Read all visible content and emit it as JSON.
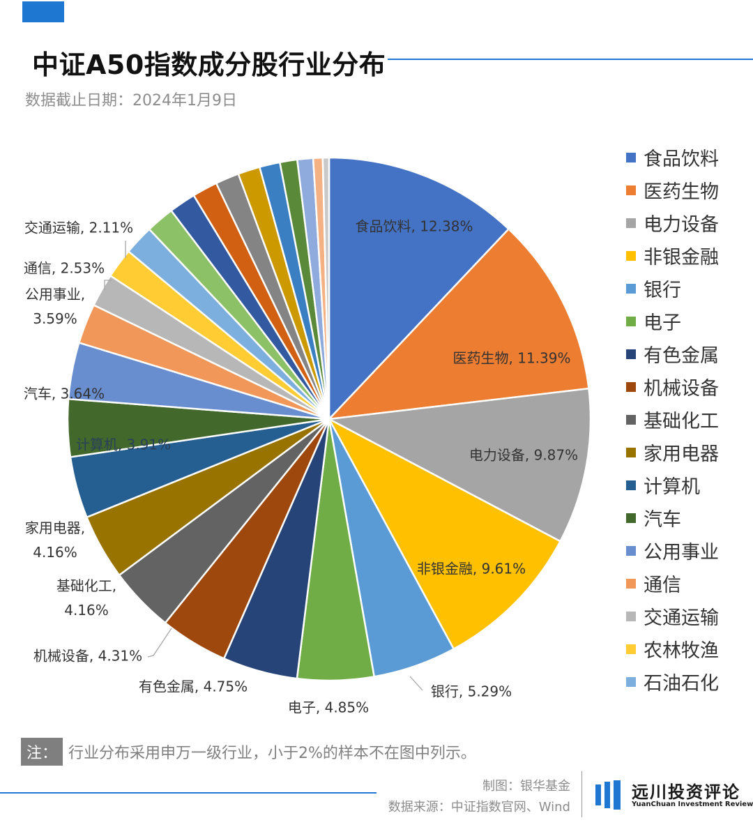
{
  "header": {
    "title": "中证A50指数成分股行业分布",
    "subtitle": "数据截止日期：2024年1月9日",
    "accent_color": "#1e78d2"
  },
  "chart_data": {
    "type": "pie",
    "title": "中证A50指数成分股行业分布",
    "start": "12-o'clock",
    "direction": "clockwise",
    "legend_position": "right",
    "slices": [
      {
        "name": "食品饮料",
        "value": 12.38,
        "label": "食品饮料, 12.38%",
        "color": "#4472c4"
      },
      {
        "name": "医药生物",
        "value": 11.39,
        "label": "医药生物, 11.39%",
        "color": "#ed7d31"
      },
      {
        "name": "电力设备",
        "value": 9.87,
        "label": "电力设备, 9.87%",
        "color": "#a5a5a5"
      },
      {
        "name": "非银金融",
        "value": 9.61,
        "label": "非银金融, 9.61%",
        "color": "#ffc000"
      },
      {
        "name": "银行",
        "value": 5.29,
        "label": "银行, 5.29%",
        "color": "#5b9bd5"
      },
      {
        "name": "电子",
        "value": 4.85,
        "label": "电子, 4.85%",
        "color": "#70ad47"
      },
      {
        "name": "有色金属",
        "value": 4.75,
        "label": "有色金属, 4.75%",
        "color": "#264478"
      },
      {
        "name": "机械设备",
        "value": 4.31,
        "label": "机械设备, 4.31%",
        "color": "#9e480e"
      },
      {
        "name": "基础化工",
        "value": 4.16,
        "label": "基础化工, 4.16%",
        "color": "#636363"
      },
      {
        "name": "家用电器",
        "value": 4.16,
        "label": "家用电器, 4.16%",
        "color": "#997300"
      },
      {
        "name": "计算机",
        "value": 3.91,
        "label": "计算机, 3.91%",
        "color": "#255e91"
      },
      {
        "name": "汽车",
        "value": 3.64,
        "label": "汽车, 3.64%",
        "color": "#43682b"
      },
      {
        "name": "公用事业",
        "value": 3.59,
        "label": "公用事业, 3.59%",
        "color": "#698ed0"
      },
      {
        "name": "通信",
        "value": 2.53,
        "label": "通信, 2.53%",
        "color": "#f1975a"
      },
      {
        "name": "交通运输",
        "value": 2.11,
        "label": "交通运输, 2.11%",
        "color": "#b7b7b7"
      },
      {
        "name": "农林牧渔",
        "value": 1.9,
        "color": "#ffcd33"
      },
      {
        "name": "石油石化",
        "value": 1.9,
        "color": "#7cafdd"
      },
      {
        "name": "",
        "value": 1.8,
        "color": "#8cc168"
      },
      {
        "name": "",
        "value": 1.7,
        "color": "#335aa1"
      },
      {
        "name": "",
        "value": 1.6,
        "color": "#d26012"
      },
      {
        "name": "",
        "value": 1.5,
        "color": "#848484"
      },
      {
        "name": "",
        "value": 1.4,
        "color": "#cc9a00"
      },
      {
        "name": "",
        "value": 1.3,
        "color": "#3a7fc1"
      },
      {
        "name": "",
        "value": 1.1,
        "color": "#5a8a39"
      },
      {
        "name": "",
        "value": 1.0,
        "color": "#8faadc"
      },
      {
        "name": "",
        "value": 0.6,
        "color": "#f4b183"
      },
      {
        "name": "",
        "value": 0.4,
        "color": "#c9c9c9"
      }
    ]
  },
  "note": {
    "tag": "注：",
    "text": "行业分布采用申万一级行业，小于2%的样本不在图中列示。"
  },
  "footer": {
    "credit": "制图：银华基金",
    "source": "数据来源：中证指数官网、Wind",
    "logo_cn": "远川投资评论",
    "logo_en": "YuanChuan Investment Review"
  }
}
